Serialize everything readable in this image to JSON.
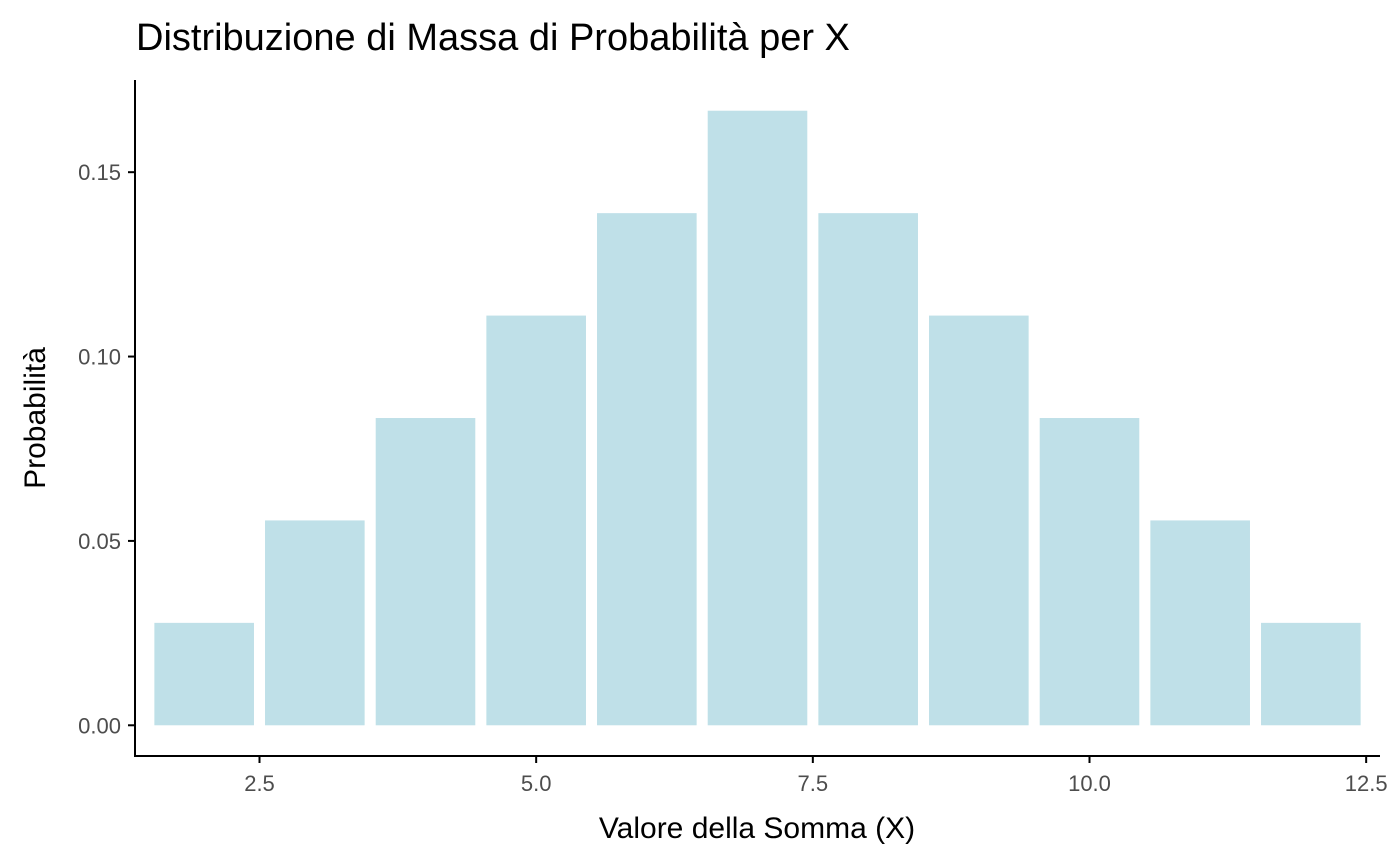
{
  "chart_data": {
    "type": "bar",
    "title": "Distribuzione di Massa di Probabilità per X",
    "xlabel": "Valore della Somma (X)",
    "ylabel": "Probabilità",
    "x": [
      2,
      3,
      4,
      5,
      6,
      7,
      8,
      9,
      10,
      11,
      12
    ],
    "values": [
      0.02778,
      0.05556,
      0.08333,
      0.11111,
      0.13889,
      0.16667,
      0.13889,
      0.11111,
      0.08333,
      0.05556,
      0.02778
    ],
    "xlim": [
      1.375,
      12.625
    ],
    "ylim": [
      -0.00833,
      0.175
    ],
    "x_ticks": [
      2.5,
      5.0,
      7.5,
      10.0,
      12.5
    ],
    "x_tick_labels": [
      "2.5",
      "5.0",
      "7.5",
      "10.0",
      "12.5"
    ],
    "y_ticks": [
      0.0,
      0.05,
      0.1,
      0.15
    ],
    "y_tick_labels": [
      "0.00",
      "0.05",
      "0.10",
      "0.15"
    ],
    "bar_color": "#bfe0e8",
    "grid": false,
    "legend": "none"
  }
}
